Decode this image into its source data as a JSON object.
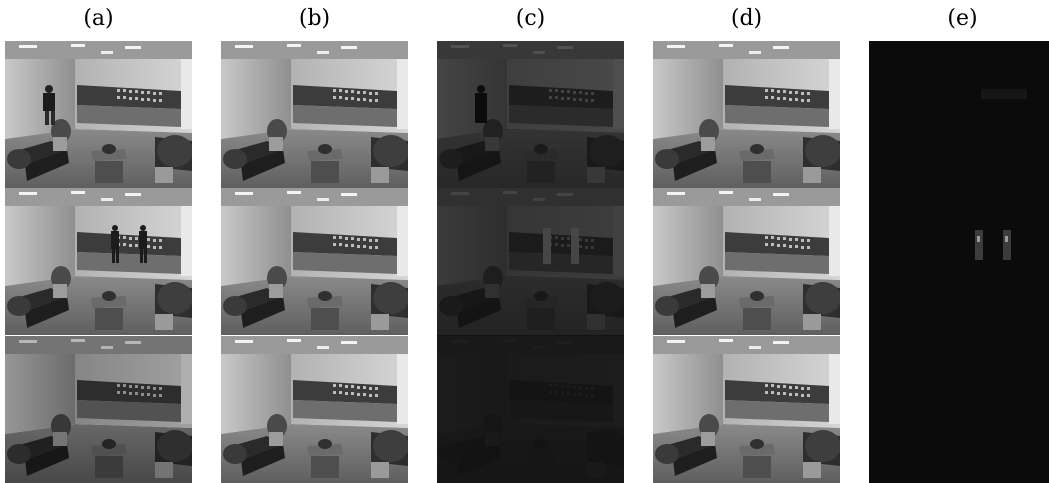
{
  "columns": [
    {
      "label": "(a)",
      "kind": "input-frame"
    },
    {
      "label": "(b)",
      "kind": "background"
    },
    {
      "label": "(c)",
      "kind": "residual-dark"
    },
    {
      "label": "(d)",
      "kind": "background"
    },
    {
      "label": "(e)",
      "kind": "foreground-sparse"
    }
  ]
}
